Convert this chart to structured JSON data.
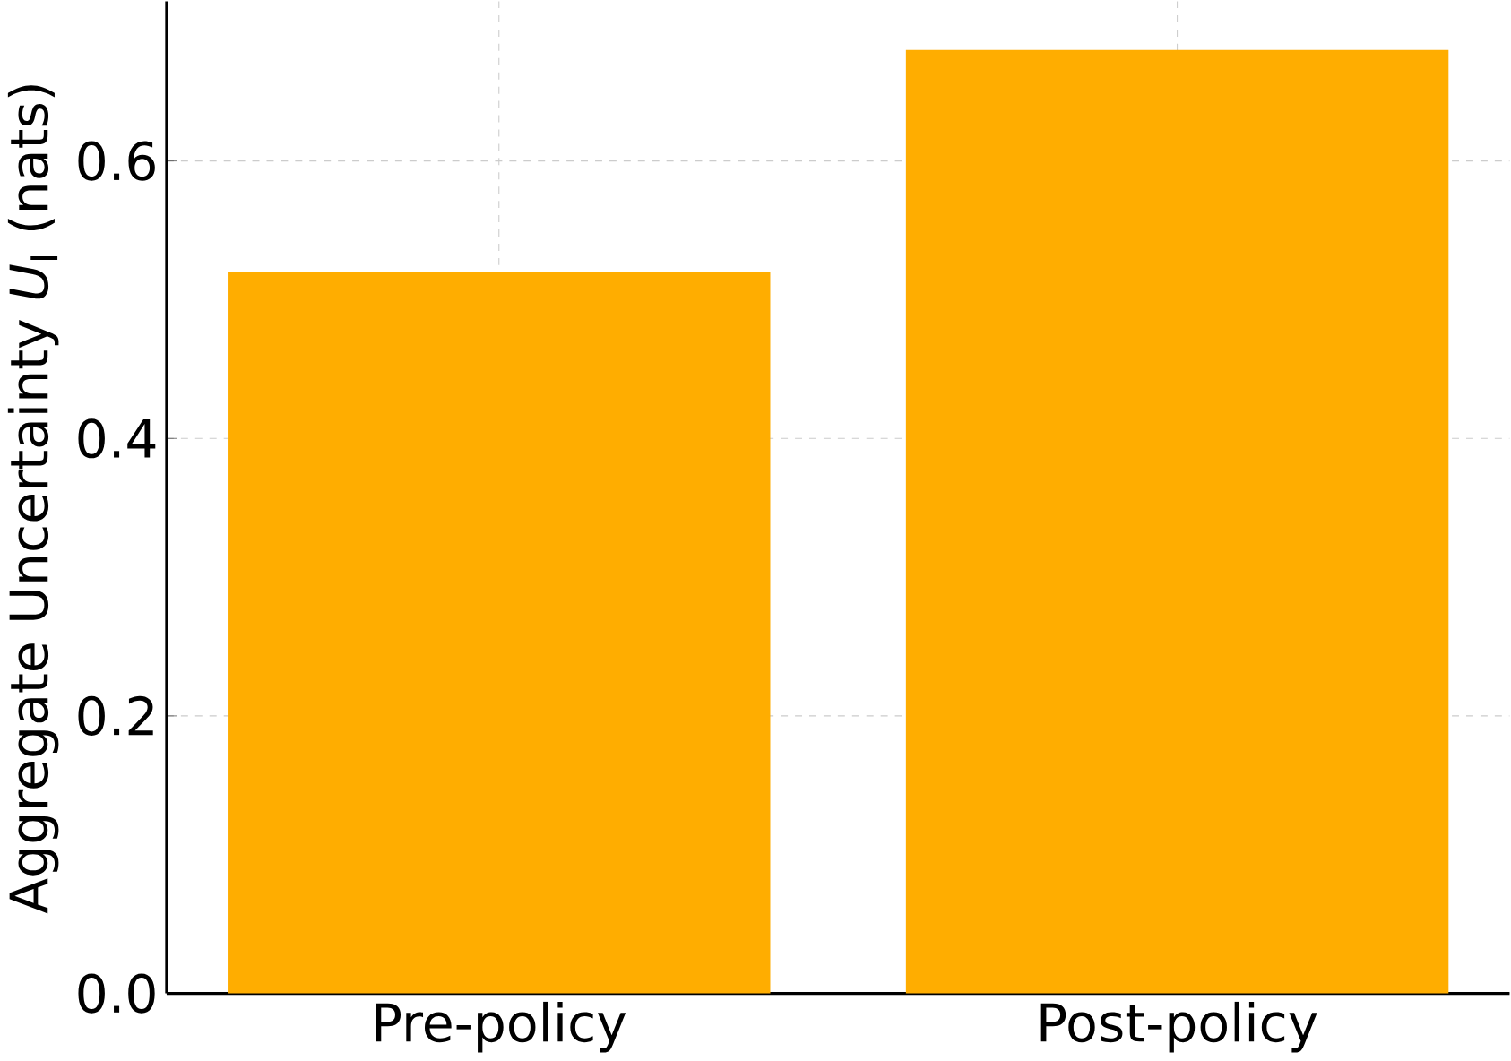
{
  "chart_data": {
    "type": "bar",
    "ylabel": "Aggregate Uncertainty *U*$_{I}$ (nats)",
    "categories": [
      "Pre-policy",
      "Post-policy"
    ],
    "values": [
      0.52,
      0.68
    ],
    "color": "#ffad00",
    "ylim": [
      0,
      0.715
    ],
    "yticks": [
      {
        "value": 0,
        "label": "0.0"
      },
      0.2,
      0.4,
      0.6
    ],
    "grid": true
  }
}
